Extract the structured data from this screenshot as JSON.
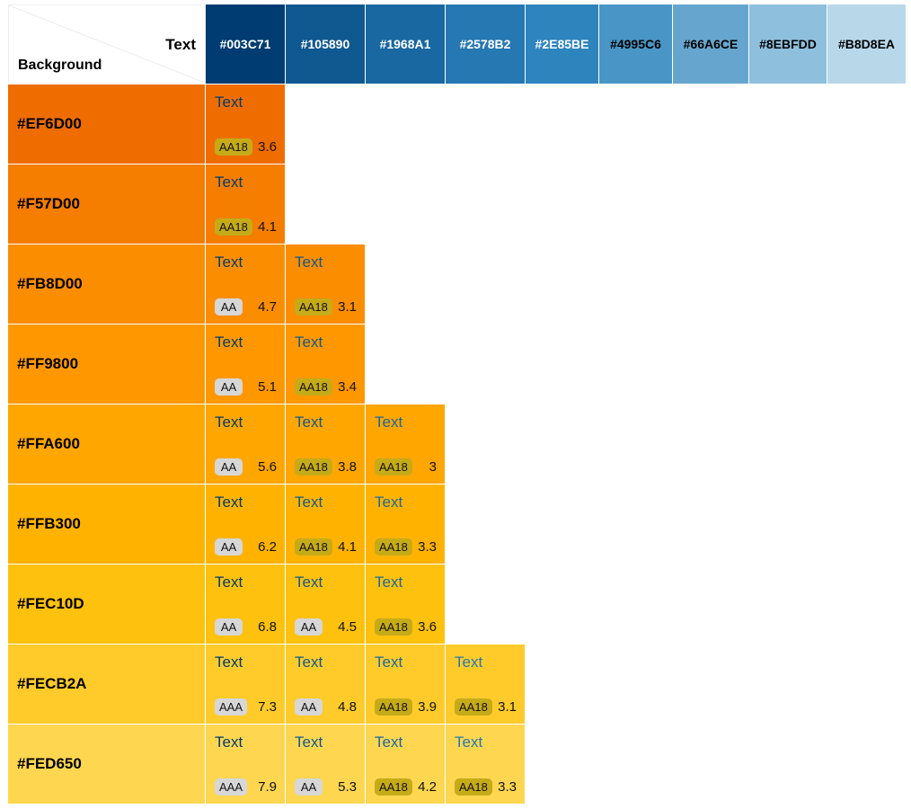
{
  "corner": {
    "text_label": "Text",
    "background_label": "Background"
  },
  "sample_text": "Text",
  "text_colors": [
    {
      "hex": "#003C71",
      "label": "#003C71",
      "fg": "#ffffff"
    },
    {
      "hex": "#105890",
      "label": "#105890",
      "fg": "#ffffff"
    },
    {
      "hex": "#1968A1",
      "label": "#1968A1",
      "fg": "#ffffff"
    },
    {
      "hex": "#2578B2",
      "label": "#2578B2",
      "fg": "#ffffff"
    },
    {
      "hex": "#2E85BE",
      "label": "#2E85BE",
      "fg": "#ffffff"
    },
    {
      "hex": "#4995C6",
      "label": "#4995C6",
      "fg": "#000000"
    },
    {
      "hex": "#66A6CE",
      "label": "#66A6CE",
      "fg": "#000000"
    },
    {
      "hex": "#8EBFDD",
      "label": "#8EBFDD",
      "fg": "#000000"
    },
    {
      "hex": "#B8D8EA",
      "label": "#B8D8EA",
      "fg": "#000000"
    }
  ],
  "backgrounds": [
    {
      "hex": "#EF6D00",
      "label": "#EF6D00",
      "results": [
        {
          "badge": "AA18",
          "ratio": "3.6"
        }
      ]
    },
    {
      "hex": "#F57D00",
      "label": "#F57D00",
      "results": [
        {
          "badge": "AA18",
          "ratio": "4.1"
        }
      ]
    },
    {
      "hex": "#FB8D00",
      "label": "#FB8D00",
      "results": [
        {
          "badge": "AA",
          "ratio": "4.7"
        },
        {
          "badge": "AA18",
          "ratio": "3.1"
        }
      ]
    },
    {
      "hex": "#FF9800",
      "label": "#FF9800",
      "results": [
        {
          "badge": "AA",
          "ratio": "5.1"
        },
        {
          "badge": "AA18",
          "ratio": "3.4"
        }
      ]
    },
    {
      "hex": "#FFA600",
      "label": "#FFA600",
      "results": [
        {
          "badge": "AA",
          "ratio": "5.6"
        },
        {
          "badge": "AA18",
          "ratio": "3.8"
        },
        {
          "badge": "AA18",
          "ratio": "3"
        }
      ]
    },
    {
      "hex": "#FFB300",
      "label": "#FFB300",
      "results": [
        {
          "badge": "AA",
          "ratio": "6.2"
        },
        {
          "badge": "AA18",
          "ratio": "4.1"
        },
        {
          "badge": "AA18",
          "ratio": "3.3"
        }
      ]
    },
    {
      "hex": "#FEC10D",
      "label": "#FEC10D",
      "results": [
        {
          "badge": "AA",
          "ratio": "6.8"
        },
        {
          "badge": "AA",
          "ratio": "4.5"
        },
        {
          "badge": "AA18",
          "ratio": "3.6"
        }
      ]
    },
    {
      "hex": "#FECB2A",
      "label": "#FECB2A",
      "results": [
        {
          "badge": "AAA",
          "ratio": "7.3"
        },
        {
          "badge": "AA",
          "ratio": "4.8"
        },
        {
          "badge": "AA18",
          "ratio": "3.9"
        },
        {
          "badge": "AA18",
          "ratio": "3.1"
        }
      ]
    },
    {
      "hex": "#FED650",
      "label": "#FED650",
      "results": [
        {
          "badge": "AAA",
          "ratio": "7.9"
        },
        {
          "badge": "AA",
          "ratio": "5.3"
        },
        {
          "badge": "AA18",
          "ratio": "4.2"
        },
        {
          "badge": "AA18",
          "ratio": "3.3"
        }
      ]
    }
  ]
}
